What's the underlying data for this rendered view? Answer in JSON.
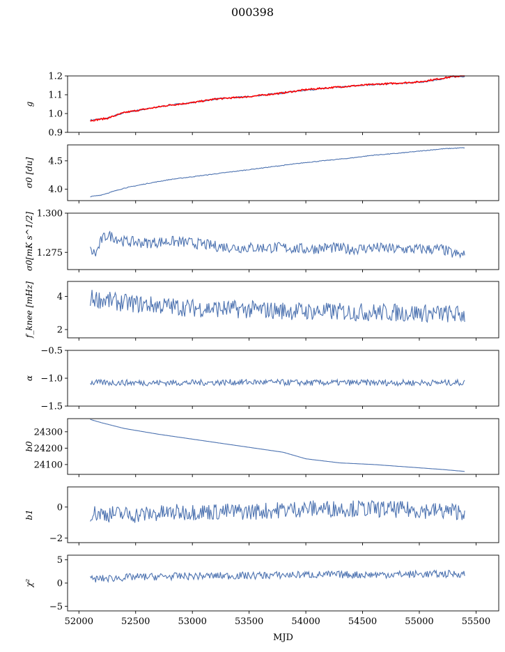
{
  "figure": {
    "title": "000398",
    "xlabel": "MJD",
    "x_ticks": [
      52000,
      52500,
      53000,
      53500,
      54000,
      54500,
      55000,
      55500
    ],
    "x_range": [
      51900,
      55700
    ]
  },
  "chart_data": [
    {
      "type": "line",
      "ylabel": "g",
      "ylim": [
        0.9,
        1.2
      ],
      "y_ticks": [
        0.9,
        1.0,
        1.1,
        1.2
      ],
      "y_tick_labels": [
        "0.9",
        "1.0",
        "1.1",
        "1.2"
      ],
      "grid": false,
      "series": [
        {
          "color": "#4c72b0",
          "x": [
            52100,
            52250,
            52400,
            52600,
            52800,
            53000,
            53200,
            53500,
            53800,
            54000,
            54300,
            54600,
            55000,
            55300,
            55400
          ],
          "values": [
            0.965,
            0.975,
            1.005,
            1.025,
            1.045,
            1.058,
            1.077,
            1.09,
            1.11,
            1.125,
            1.14,
            1.155,
            1.165,
            1.195,
            1.198
          ]
        },
        {
          "color": "#ff0000",
          "x": [
            52100,
            52250,
            52400,
            52600,
            52800,
            53000,
            53200,
            53500,
            53800,
            54000,
            54300,
            54600,
            55000,
            55300,
            55400
          ],
          "values": [
            0.962,
            0.975,
            1.005,
            1.025,
            1.045,
            1.058,
            1.077,
            1.09,
            1.11,
            1.127,
            1.142,
            1.155,
            1.168,
            1.197,
            1.2
          ]
        }
      ]
    },
    {
      "type": "line",
      "ylabel": "σ0 [du]",
      "ylim": [
        3.8,
        4.78
      ],
      "y_ticks": [
        4.0,
        4.5
      ],
      "y_tick_labels": [
        "4.0",
        "4.5"
      ],
      "grid": false,
      "series": [
        {
          "color": "#4c72b0",
          "x": [
            52100,
            52200,
            52400,
            52600,
            52800,
            53000,
            53200,
            53400,
            53600,
            53800,
            54000,
            54200,
            54400,
            54600,
            54800,
            55000,
            55200,
            55400
          ],
          "values": [
            3.87,
            3.9,
            4.02,
            4.1,
            4.17,
            4.22,
            4.27,
            4.32,
            4.37,
            4.42,
            4.47,
            4.51,
            4.55,
            4.6,
            4.63,
            4.67,
            4.71,
            4.73
          ]
        }
      ]
    },
    {
      "type": "line",
      "ylabel": "σ0[mK s^1/2]",
      "ylim": [
        1.264,
        1.3
      ],
      "y_ticks": [
        1.275,
        1.3
      ],
      "y_tick_labels": [
        "1.275",
        "1.300"
      ],
      "grid": false,
      "series": [
        {
          "color": "#4c72b0",
          "x": [
            52100,
            52150,
            52200,
            52250,
            52300,
            52400,
            52600,
            52800,
            53000,
            53200,
            53400,
            53600,
            53800,
            54000,
            54200,
            54400,
            54600,
            54800,
            55000,
            55200,
            55300,
            55400
          ],
          "values": [
            1.276,
            1.274,
            1.283,
            1.286,
            1.285,
            1.282,
            1.281,
            1.282,
            1.281,
            1.279,
            1.278,
            1.278,
            1.278,
            1.277,
            1.278,
            1.277,
            1.278,
            1.277,
            1.277,
            1.277,
            1.274,
            1.273
          ]
        }
      ]
    },
    {
      "type": "line",
      "ylabel": "f_knee [mHz]",
      "ylim": [
        1.5,
        4.9
      ],
      "y_ticks": [
        2,
        4
      ],
      "y_tick_labels": [
        "2",
        "4"
      ],
      "grid": false,
      "series": [
        {
          "color": "#4c72b0",
          "x": [
            52100,
            52200,
            52400,
            52600,
            52800,
            53000,
            53500,
            54000,
            54500,
            55000,
            55400
          ],
          "values": [
            3.9,
            3.8,
            3.6,
            3.5,
            3.4,
            3.3,
            3.2,
            3.1,
            3.05,
            3.0,
            2.9
          ]
        }
      ]
    },
    {
      "type": "line",
      "ylabel": "α",
      "ylim": [
        -1.5,
        -0.5
      ],
      "y_ticks": [
        -1.5,
        -1.0,
        -0.5
      ],
      "y_tick_labels": [
        "−1.5",
        "−1.0",
        "−0.5"
      ],
      "grid": false,
      "series": [
        {
          "color": "#4c72b0",
          "x": [
            52100,
            52500,
            53000,
            53500,
            54000,
            54500,
            55000,
            55400
          ],
          "values": [
            -1.08,
            -1.08,
            -1.08,
            -1.07,
            -1.08,
            -1.08,
            -1.08,
            -1.08
          ]
        }
      ]
    },
    {
      "type": "line",
      "ylabel": "b0",
      "ylim": [
        24040,
        24380
      ],
      "y_ticks": [
        24100,
        24200,
        24300
      ],
      "y_tick_labels": [
        "24100",
        "24200",
        "24300"
      ],
      "grid": false,
      "series": [
        {
          "color": "#4c72b0",
          "x": [
            52100,
            52200,
            52400,
            52700,
            53000,
            53300,
            53600,
            53800,
            54000,
            54300,
            54600,
            55000,
            55200,
            55400
          ],
          "values": [
            24375,
            24355,
            24320,
            24285,
            24255,
            24225,
            24195,
            24175,
            24135,
            24110,
            24100,
            24080,
            24070,
            24058
          ]
        }
      ]
    },
    {
      "type": "line",
      "ylabel": "b1",
      "ylim": [
        -2.3,
        1.3
      ],
      "y_ticks": [
        -2,
        0
      ],
      "y_tick_labels": [
        "−2",
        "0"
      ],
      "grid": false,
      "series": [
        {
          "color": "#4c72b0",
          "x": [
            52100,
            52500,
            53000,
            53500,
            54000,
            54500,
            55000,
            55400
          ],
          "values": [
            -0.4,
            -0.5,
            -0.3,
            -0.3,
            -0.1,
            -0.1,
            -0.2,
            -0.3
          ]
        }
      ]
    },
    {
      "type": "line",
      "ylabel": "χ²",
      "ylim": [
        -6,
        6
      ],
      "y_ticks": [
        -5,
        0,
        5
      ],
      "y_tick_labels": [
        "−5",
        "0",
        "5"
      ],
      "grid": false,
      "series": [
        {
          "color": "#4c72b0",
          "x": [
            52100,
            52500,
            53000,
            53500,
            54000,
            54500,
            55000,
            55400
          ],
          "values": [
            0.8,
            1.3,
            1.5,
            1.6,
            1.8,
            1.8,
            1.9,
            2.0
          ]
        }
      ]
    }
  ]
}
